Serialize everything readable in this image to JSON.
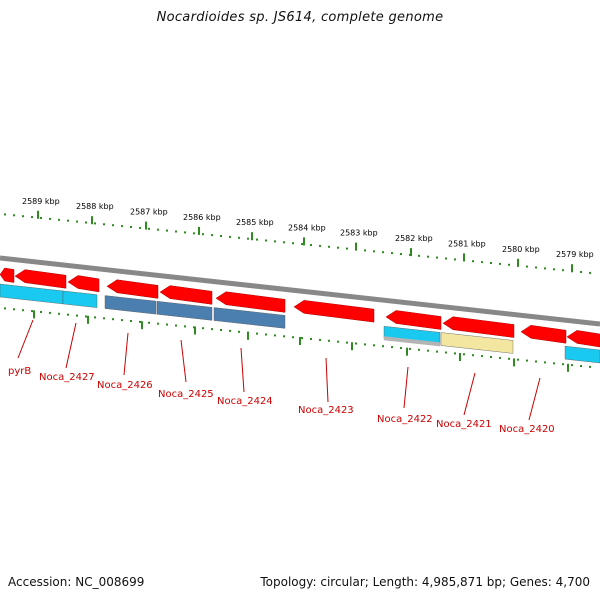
{
  "title": "Nocardioides sp. JS614, complete genome",
  "accession": "Accession: NC_008699",
  "topology": "Topology: circular; Length: 4,985,871 bp; Genes: 4,700",
  "colors": {
    "tick": "#2e8b20",
    "backbone": "#888888",
    "gene_red": "#ff0000",
    "gene_cyan": "#19c9f0",
    "gene_steel": "#4a7fb0",
    "gene_khaki": "#f2e6a0",
    "gene_gray": "#b4b4b4",
    "label": "#cc0000"
  },
  "kbp_labels": [
    "2589 kbp",
    "2588 kbp",
    "2587 kbp",
    "2586 kbp",
    "2585 kbp",
    "2584 kbp",
    "2583 kbp",
    "2582 kbp",
    "2581 kbp",
    "2580 kbp",
    "2579 kbp"
  ],
  "genes": [
    {
      "label": "pyrB"
    },
    {
      "label": "Noca_2427"
    },
    {
      "label": "Noca_2426"
    },
    {
      "label": "Noca_2425"
    },
    {
      "label": "Noca_2424"
    },
    {
      "label": "Noca_2423"
    },
    {
      "label": "Noca_2422"
    },
    {
      "label": "Noca_2421"
    },
    {
      "label": "Noca_2420"
    }
  ]
}
